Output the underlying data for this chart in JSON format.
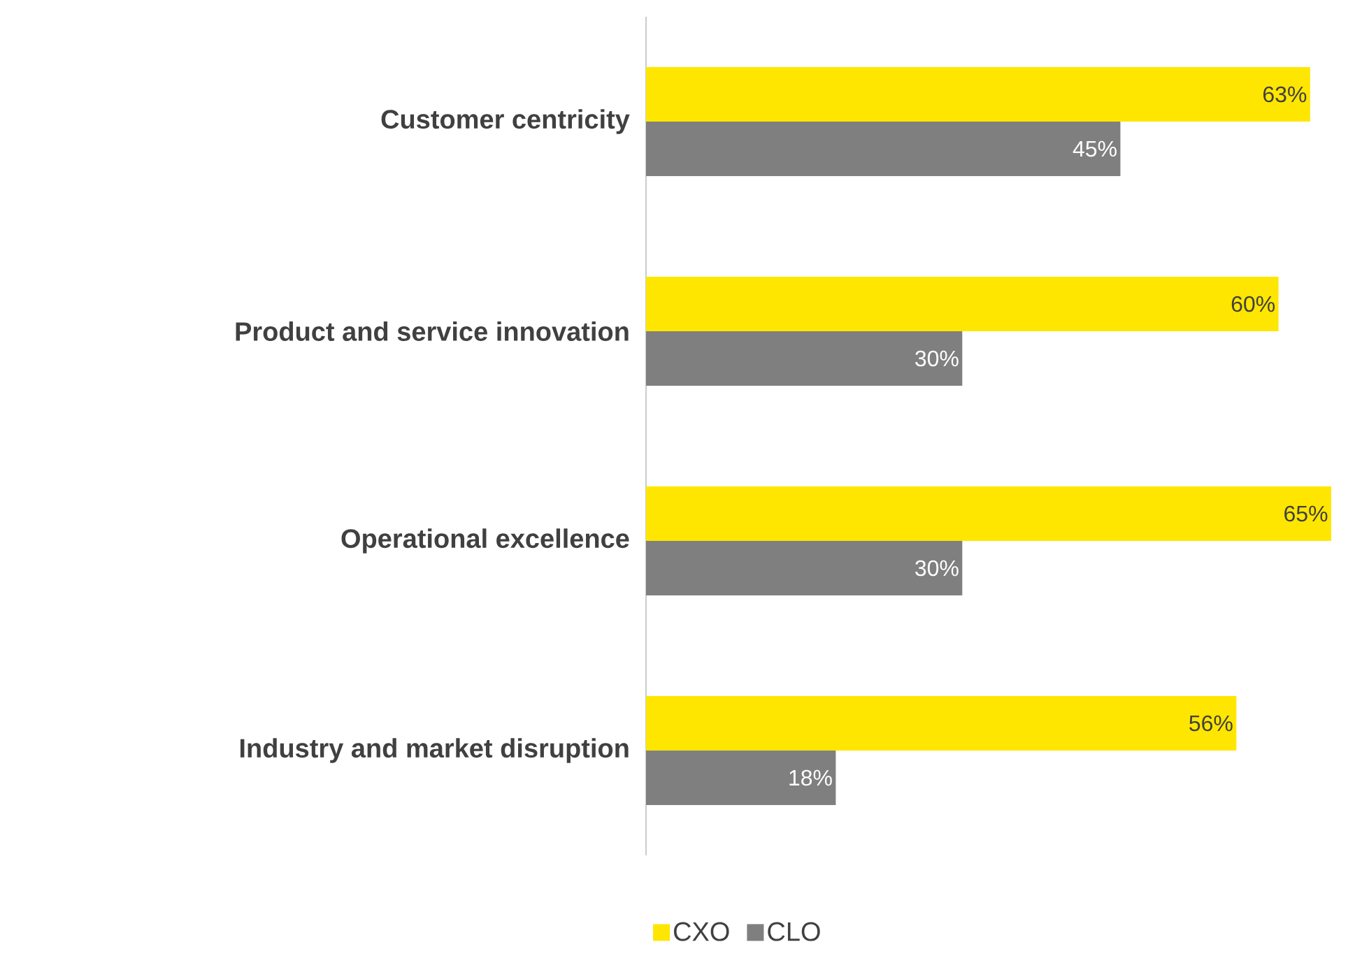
{
  "chart_data": {
    "type": "bar",
    "orientation": "horizontal",
    "categories": [
      "Customer centricity",
      "Product and service innovation",
      "Operational excellence",
      "Industry and market disruption"
    ],
    "series": [
      {
        "name": "CXO",
        "color": "#ffe600",
        "values": [
          63,
          60,
          65,
          56
        ],
        "value_labels": [
          "63%",
          "60%",
          "65%",
          "56%"
        ]
      },
      {
        "name": "CLO",
        "color": "#7f7f7f",
        "values": [
          45,
          30,
          30,
          18
        ],
        "value_labels": [
          "45%",
          "30%",
          "30%",
          "18%"
        ]
      }
    ],
    "legend": "bottom",
    "grid": false
  }
}
